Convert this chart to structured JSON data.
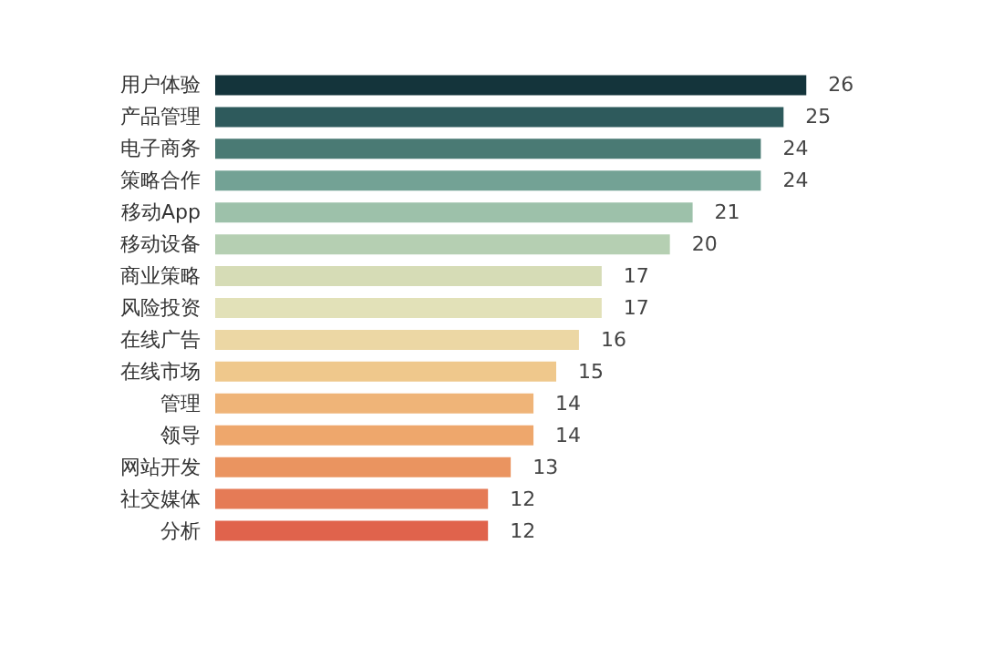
{
  "chart_data": {
    "type": "bar",
    "orientation": "horizontal",
    "data_labels": true,
    "categories": [
      "用户体验",
      "产品管理",
      "电子商务",
      "策略合作",
      "移动App",
      "移动设备",
      "商业策略",
      "风险投资",
      "在线广告",
      "在线市场",
      "管理",
      "领导",
      "网站开发",
      "社交媒体",
      "分析"
    ],
    "values": [
      26,
      25,
      24,
      24,
      21,
      20,
      17,
      17,
      16,
      15,
      14,
      14,
      13,
      12,
      12
    ],
    "colors": [
      "#14343b",
      "#2e5a5c",
      "#4a7a74",
      "#73a295",
      "#9dc1aa",
      "#b5cfb2",
      "#d6dcb6",
      "#e2e1b8",
      "#ecd7a4",
      "#efc88c",
      "#efb478",
      "#eea76c",
      "#ea9460",
      "#e57b56",
      "#e0634c"
    ]
  }
}
